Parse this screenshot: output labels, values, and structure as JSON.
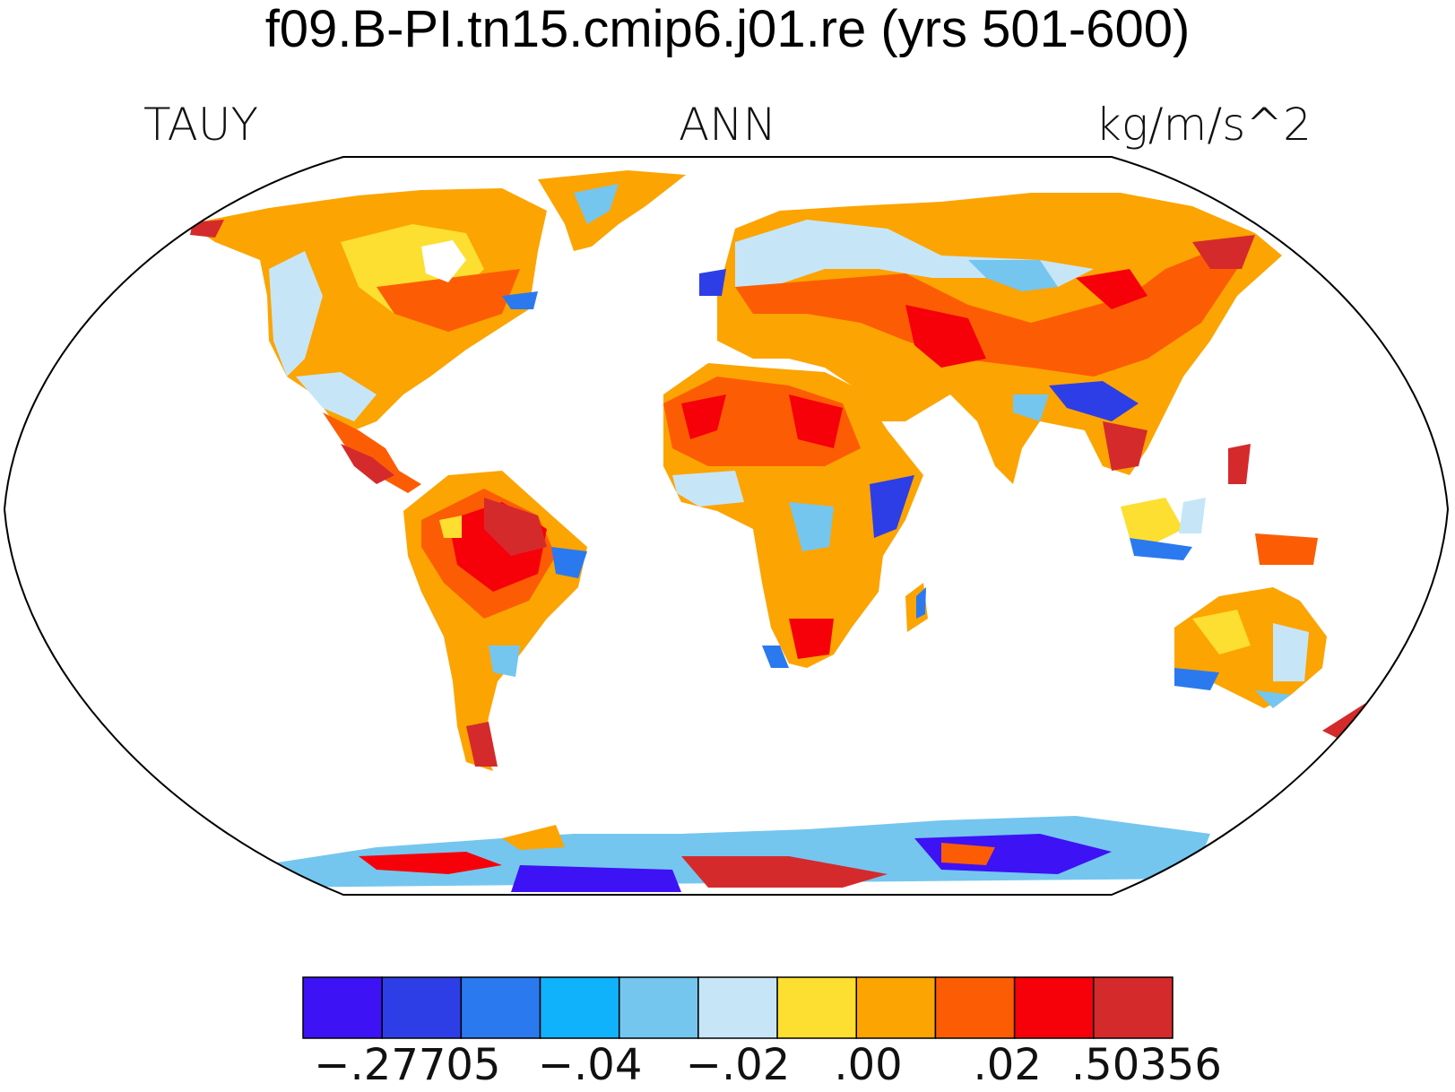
{
  "title": "f09.B-PI.tn15.cmip6.j01.re (yrs 501-600)",
  "left_string": "TAUY",
  "center_string": "ANN",
  "right_string": "kg/m/s^2",
  "colorbar": {
    "colors": [
      "#3d12f5",
      "#2e3ee6",
      "#2b79ee",
      "#10b2fb",
      "#74c6ef",
      "#c6e6f8",
      "#fcdf30",
      "#fca402",
      "#fc5d04",
      "#f6000a",
      "#d52a2c"
    ],
    "labels": [
      "−.27705",
      "−.04",
      "−.02",
      ".00",
      ".02",
      ".50356"
    ]
  },
  "map": {
    "projection": "Robinson",
    "ocean_color": "#ffffff",
    "coastline_color": "#000000"
  }
}
